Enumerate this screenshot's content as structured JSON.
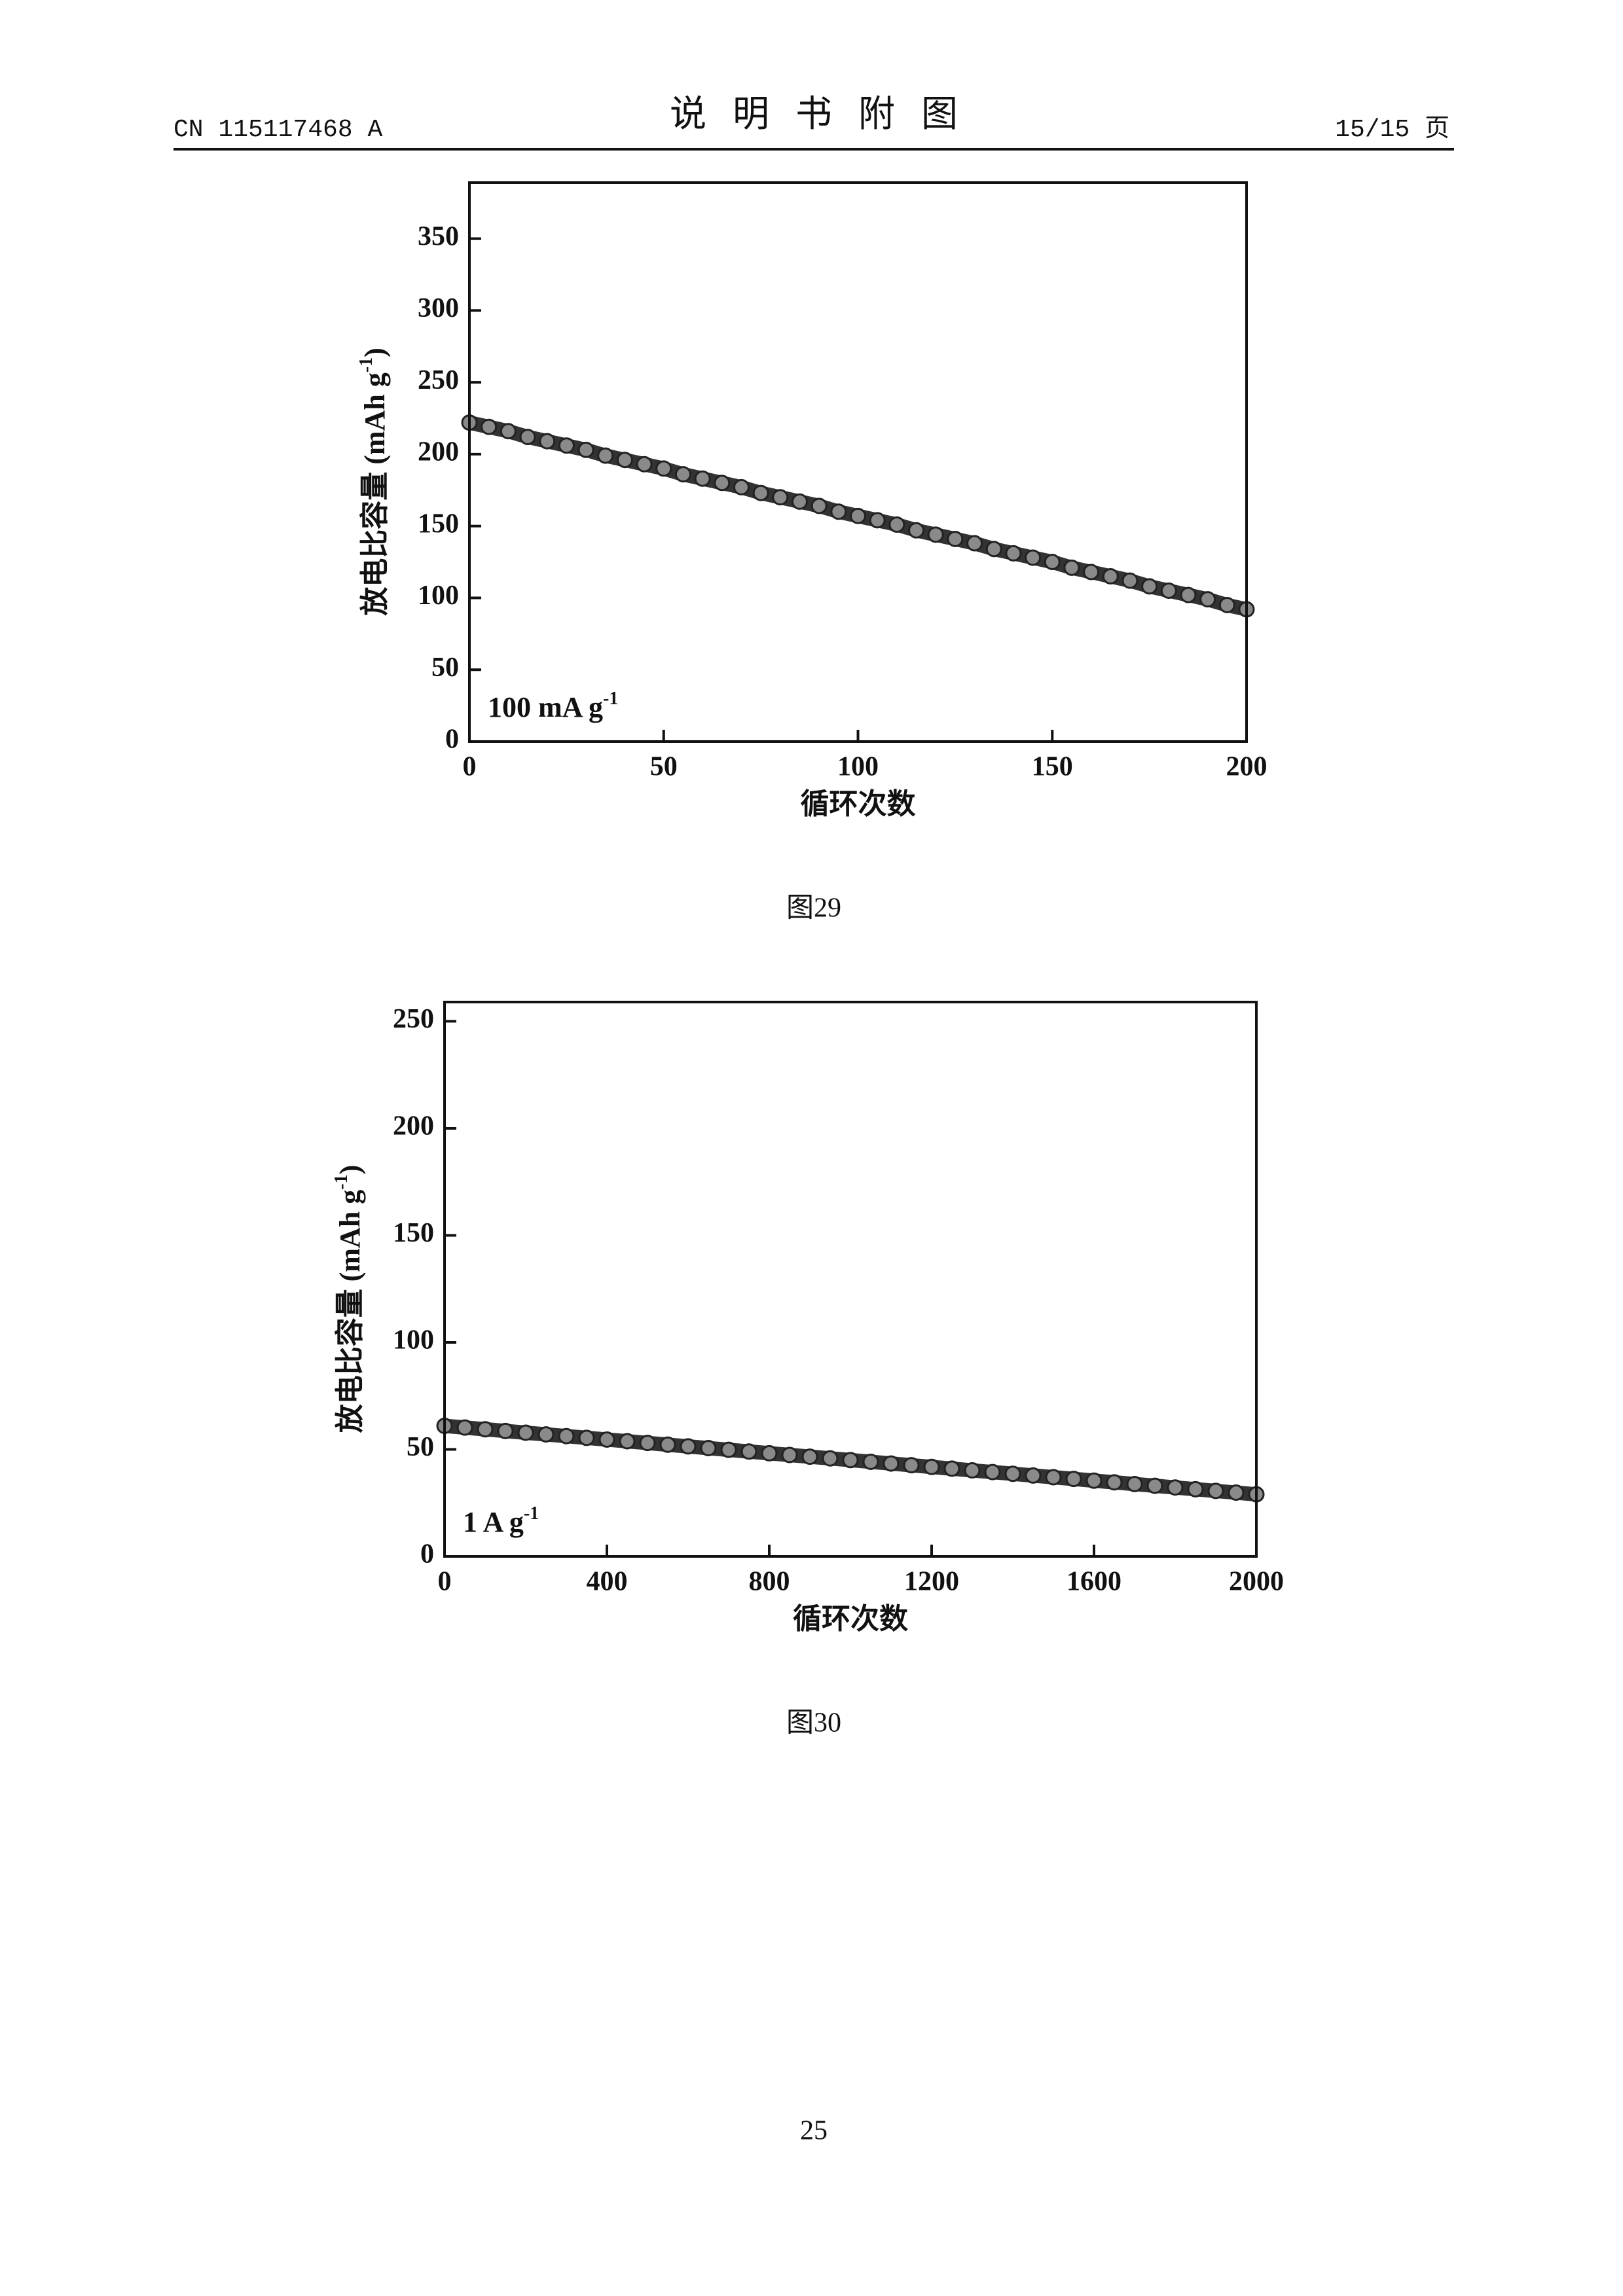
{
  "header": {
    "left": "CN 115117468 A",
    "title": "说明书附图",
    "right": "15/15 页"
  },
  "captions": [
    "图29",
    "图30"
  ],
  "page_number": "25",
  "chart_data": [
    {
      "type": "scatter",
      "xlabel": "循环次数",
      "ylabel": {
        "main": "放电比容量 (mAh g",
        "sup": "-1",
        "end": ")"
      },
      "annotation": {
        "text": "100 mA g",
        "sup": "-1"
      },
      "xlim": [
        0,
        200
      ],
      "xticks": [
        0,
        50,
        100,
        150,
        200
      ],
      "ylim": [
        0,
        389
      ],
      "yticks": [
        0,
        50,
        100,
        150,
        200,
        250,
        300,
        350
      ],
      "color": "#8a8a8a",
      "x": [
        0,
        5,
        10,
        15,
        20,
        25,
        30,
        35,
        40,
        45,
        50,
        55,
        60,
        65,
        70,
        75,
        80,
        85,
        90,
        95,
        100,
        105,
        110,
        115,
        120,
        125,
        130,
        135,
        140,
        145,
        150,
        155,
        160,
        165,
        170,
        175,
        180,
        185,
        190,
        195,
        200
      ],
      "values": [
        222,
        219,
        216,
        212,
        209,
        206,
        203,
        199,
        196,
        193,
        190,
        186,
        183,
        180,
        177,
        173,
        170,
        167,
        164,
        160,
        157,
        154,
        151,
        147,
        144,
        141,
        138,
        134,
        131,
        128,
        125,
        121,
        118,
        115,
        112,
        108,
        105,
        102,
        99,
        95,
        92
      ]
    },
    {
      "type": "scatter",
      "xlabel": "循环次数",
      "ylabel": {
        "main": "放电比容量 (mAh g",
        "sup": "-1",
        "end": ")"
      },
      "annotation": {
        "text": "1 A g",
        "sup": "-1"
      },
      "xlim": [
        0,
        2000
      ],
      "xticks": [
        0,
        400,
        800,
        1200,
        1600,
        2000
      ],
      "ylim": [
        0,
        259
      ],
      "yticks": [
        0,
        50,
        100,
        150,
        200,
        250
      ],
      "color": "#8a8a8a",
      "x": [
        0,
        50,
        100,
        150,
        200,
        250,
        300,
        350,
        400,
        450,
        500,
        550,
        600,
        650,
        700,
        750,
        800,
        850,
        900,
        950,
        1000,
        1050,
        1100,
        1150,
        1200,
        1250,
        1300,
        1350,
        1400,
        1450,
        1500,
        1550,
        1600,
        1650,
        1700,
        1750,
        1800,
        1850,
        1900,
        1950,
        2000
      ],
      "values": [
        61,
        60.2,
        59.4,
        58.6,
        57.8,
        57,
        56.2,
        55.4,
        54.6,
        53.8,
        53,
        52.2,
        51.4,
        50.6,
        49.8,
        49,
        48.2,
        47.4,
        46.6,
        45.8,
        45,
        44.2,
        43.4,
        42.6,
        41.8,
        41,
        40.2,
        39.4,
        38.6,
        37.8,
        37,
        36.2,
        35.4,
        34.6,
        33.8,
        33,
        32.2,
        31.4,
        30.6,
        29.8,
        29
      ]
    }
  ]
}
